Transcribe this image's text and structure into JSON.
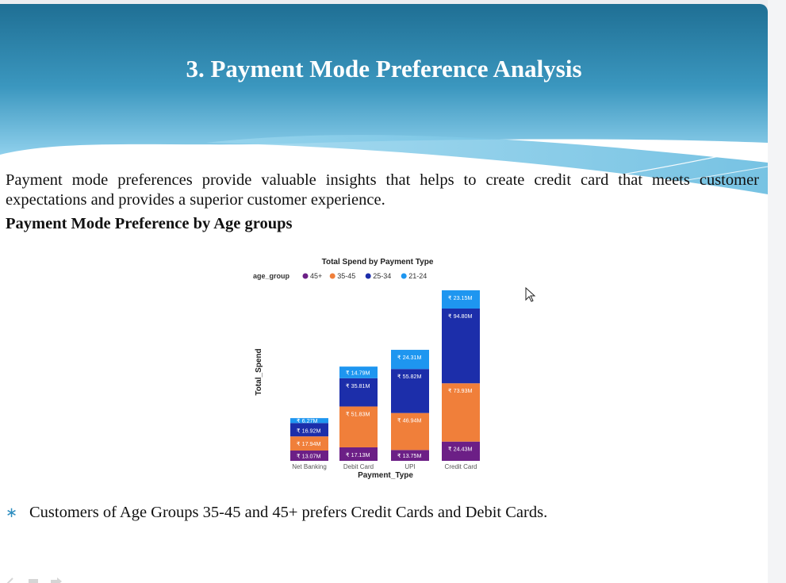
{
  "slide": {
    "title": "3. Payment Mode Preference Analysis",
    "intro": "Payment mode preferences provide valuable insights that helps to create credit card that meets customer expectations and provides a superior customer experience.",
    "subheading": "Payment Mode Preference by Age groups",
    "bullet_mark": "∗",
    "bullet": "Customers of Age Groups 35-45 and 45+ prefers Credit Cards and Debit Cards."
  },
  "colors": {
    "header_dark": "#1f6f94",
    "header_light": "#8fd0ec",
    "s45": "#6c1f86",
    "s35": "#f07f3a",
    "s25": "#1c2eaa",
    "s21": "#1e96f0"
  },
  "chart_data": {
    "type": "bar",
    "stacked": true,
    "title": "Total Spend by Payment Type",
    "legend_title": "age_group",
    "legend_position": "top-left",
    "xlabel": "Payment_Type",
    "ylabel": "Total_Spend",
    "value_prefix": "₹",
    "value_unit": "M",
    "categories": [
      "Net Banking",
      "Debit Card",
      "UPI",
      "Credit Card"
    ],
    "series": [
      {
        "name": "45+",
        "color": "#6c1f86",
        "values": [
          13.07,
          17.13,
          13.75,
          24.43
        ]
      },
      {
        "name": "35-45",
        "color": "#f07f3a",
        "values": [
          17.94,
          51.83,
          46.94,
          73.93
        ]
      },
      {
        "name": "25-34",
        "color": "#1c2eaa",
        "values": [
          16.92,
          35.81,
          55.82,
          94.8
        ]
      },
      {
        "name": "21-24",
        "color": "#1e96f0",
        "values": [
          6.27,
          14.79,
          24.31,
          23.15
        ]
      }
    ],
    "ylim": [
      0,
      216.31
    ],
    "grid": false
  }
}
